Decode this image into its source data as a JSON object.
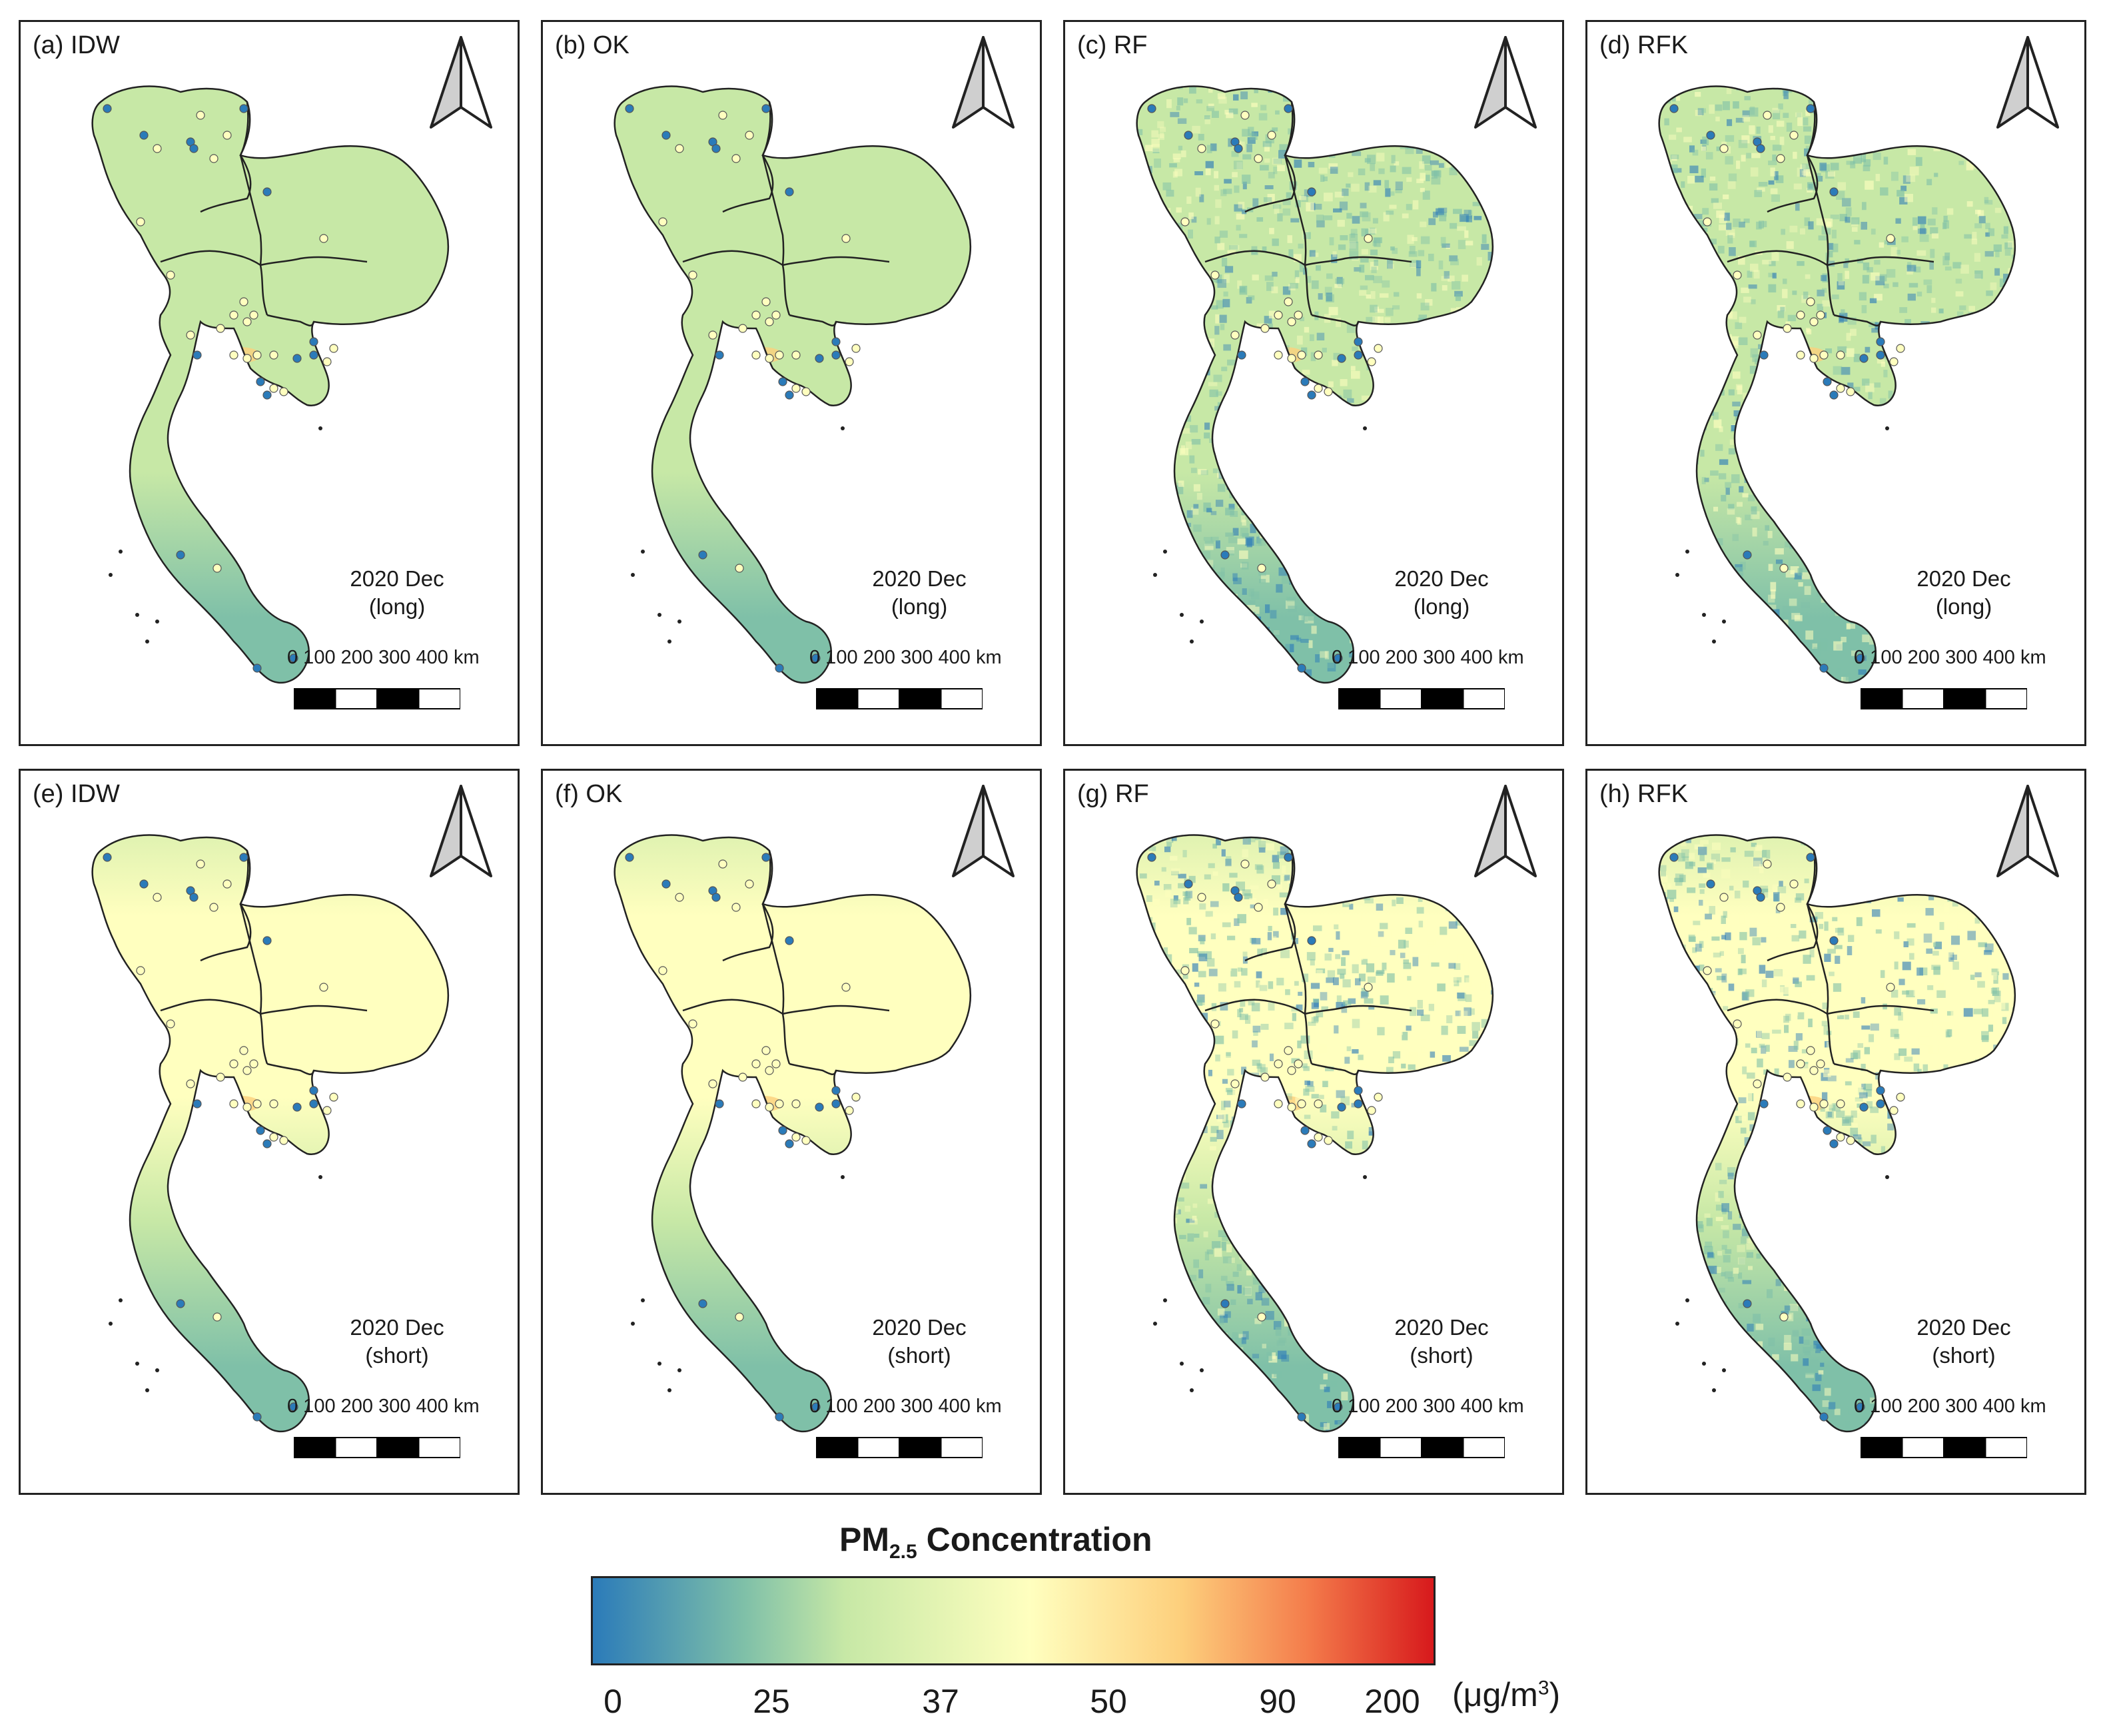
{
  "panels": [
    {
      "title": "(a) IDW",
      "period_line1": "2020 Dec",
      "period_line2": "(long)",
      "style": "smooth",
      "season": "long"
    },
    {
      "title": "(b) OK",
      "period_line1": "2020 Dec",
      "period_line2": "(long)",
      "style": "smooth",
      "season": "long"
    },
    {
      "title": "(c) RF",
      "period_line1": "2020 Dec",
      "period_line2": "(long)",
      "style": "noisy",
      "season": "long"
    },
    {
      "title": "(d) RFK",
      "period_line1": "2020 Dec",
      "period_line2": "(long)",
      "style": "noisy",
      "season": "long"
    },
    {
      "title": "(e) IDW",
      "period_line1": "2020 Dec",
      "period_line2": "(short)",
      "style": "smooth",
      "season": "short"
    },
    {
      "title": "(f) OK",
      "period_line1": "2020 Dec",
      "period_line2": "(short)",
      "style": "smooth",
      "season": "short"
    },
    {
      "title": "(g) RF",
      "period_line1": "2020 Dec",
      "period_line2": "(short)",
      "style": "noisy",
      "season": "short"
    },
    {
      "title": "(h) RFK",
      "period_line1": "2020 Dec",
      "period_line2": "(short)",
      "style": "noisy",
      "season": "short"
    }
  ],
  "scale_bar": {
    "labels": "0   100 200 300 400 km"
  },
  "legend": {
    "title_main": "PM",
    "title_sub": "2.5",
    "title_rest": " Concentration",
    "ticks": [
      "0",
      "25",
      "37",
      "50",
      "90",
      "200"
    ],
    "unit_prefix": "(μg/m",
    "unit_sup": "3",
    "unit_suffix": ")",
    "colors": [
      "#2b7bb9",
      "#7fc0a8",
      "#c7e8a6",
      "#ffffbf",
      "#fdcf7c",
      "#f47c4b",
      "#d7191c"
    ]
  }
}
